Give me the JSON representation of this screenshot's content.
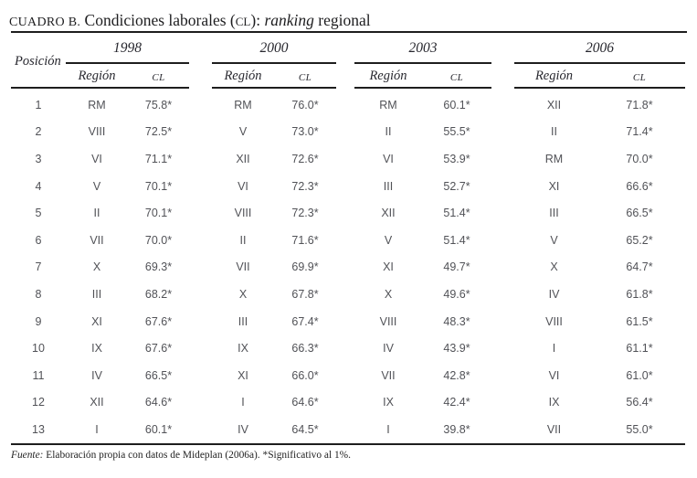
{
  "title": {
    "prefix": "CUADRO B.",
    "main": " Condiciones laborales (",
    "smallcaps": "CL",
    "after": "): ",
    "emph": "ranking",
    "suffix": " regional"
  },
  "header": {
    "position_label": "Posición",
    "region_label": "Región",
    "cl_label": "CL",
    "years": [
      "1998",
      "2000",
      "2003",
      "2006"
    ]
  },
  "chart_data": {
    "type": "table",
    "title": "Cuadro B. Condiciones laborales (CL): ranking regional",
    "columns": [
      "Posición",
      "1998 Región",
      "1998 CL",
      "2000 Región",
      "2000 CL",
      "2003 Región",
      "2003 CL",
      "2006 Región",
      "2006 CL"
    ],
    "rows": [
      [
        "1",
        "RM",
        "75.8*",
        "RM",
        "76.0*",
        "RM",
        "60.1*",
        "XII",
        "71.8*"
      ],
      [
        "2",
        "VIII",
        "72.5*",
        "V",
        "73.0*",
        "II",
        "55.5*",
        "II",
        "71.4*"
      ],
      [
        "3",
        "VI",
        "71.1*",
        "XII",
        "72.6*",
        "VI",
        "53.9*",
        "RM",
        "70.0*"
      ],
      [
        "4",
        "V",
        "70.1*",
        "VI",
        "72.3*",
        "III",
        "52.7*",
        "XI",
        "66.6*"
      ],
      [
        "5",
        "II",
        "70.1*",
        "VIII",
        "72.3*",
        "XII",
        "51.4*",
        "III",
        "66.5*"
      ],
      [
        "6",
        "VII",
        "70.0*",
        "II",
        "71.6*",
        "V",
        "51.4*",
        "V",
        "65.2*"
      ],
      [
        "7",
        "X",
        "69.3*",
        "VII",
        "69.9*",
        "XI",
        "49.7*",
        "X",
        "64.7*"
      ],
      [
        "8",
        "III",
        "68.2*",
        "X",
        "67.8*",
        "X",
        "49.6*",
        "IV",
        "61.8*"
      ],
      [
        "9",
        "XI",
        "67.6*",
        "III",
        "67.4*",
        "VIII",
        "48.3*",
        "VIII",
        "61.5*"
      ],
      [
        "10",
        "IX",
        "67.6*",
        "IX",
        "66.3*",
        "IV",
        "43.9*",
        "I",
        "61.1*"
      ],
      [
        "11",
        "IV",
        "66.5*",
        "XI",
        "66.0*",
        "VII",
        "42.8*",
        "VI",
        "61.0*"
      ],
      [
        "12",
        "XII",
        "64.6*",
        "I",
        "64.6*",
        "IX",
        "42.4*",
        "IX",
        "56.4*"
      ],
      [
        "13",
        "I",
        "60.1*",
        "IV",
        "64.5*",
        "I",
        "39.8*",
        "VII",
        "55.0*"
      ]
    ]
  },
  "footer": {
    "source_label": "Fuente:",
    "source_text": " Elaboración propia con datos de Mideplan (2006a). *Significativo al 1%."
  }
}
